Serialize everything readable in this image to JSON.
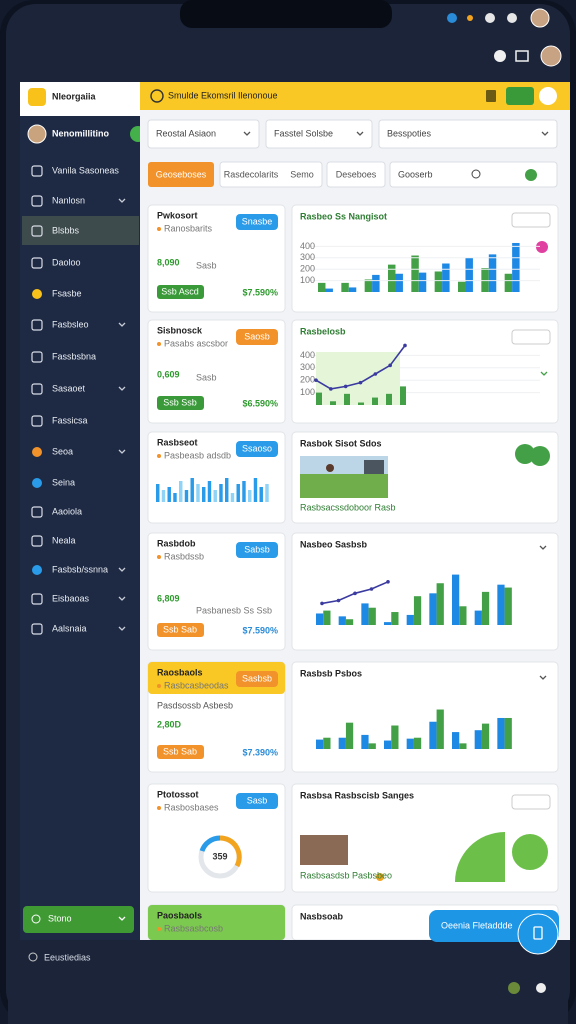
{
  "sidebar": {
    "brand": "Nleorgaiia",
    "profile": "Nenomillitino",
    "menu": [
      "Vanila Sasoneas",
      "Nanlosn",
      "Blsbbs",
      "Daoloo",
      "Fsasbe",
      "Fasbsleo",
      "Fassbsbna",
      "Sasaoet",
      "Fassicsa",
      "Seoa",
      "Seina",
      "Aaoiola",
      "Neala",
      "Fasbsb/ssnna",
      "Eisbaoas",
      "Aalsnaia"
    ],
    "button": "Stono"
  },
  "header": {
    "title": "Smulde Ekomsril Ilenonoue"
  },
  "filters": [
    "Reostal Asiaon",
    "Fasstel Solsbe",
    "Besspoties"
  ],
  "tabs": [
    "Geoseboses",
    "Rasdecolarits",
    "Semo",
    "Deseboes"
  ],
  "search": "Gooserb",
  "stat_cards": [
    {
      "title": "Pwkosort",
      "subtitle": "Ranosbarits",
      "badge": "Snasbe",
      "value": "8,090",
      "note": "Sasb",
      "button": "Ssb Ascd",
      "change": "$7.590%"
    },
    {
      "title": "Sisbnosck",
      "subtitle": "Pasabs ascsbor",
      "badge": "Saosb",
      "value": "0,609",
      "note": "Sasb",
      "button": "Ssb Ssb",
      "change": "$6.590%"
    },
    {
      "title": "Rasbseot",
      "subtitle": "Pasbeasb adsdb",
      "badge": "Ssaoso",
      "ylim": [
        0,
        100
      ],
      "values": [
        60,
        40,
        50,
        30,
        70,
        40,
        80,
        60,
        50,
        70,
        40,
        60,
        80,
        30,
        60,
        70,
        40,
        80,
        50,
        60
      ]
    },
    {
      "title": "Rasbdob",
      "subtitle": "Rasbdssb",
      "badge": "Sabsb",
      "value": "6,809",
      "note": "Pasbanesb Ss Ssb",
      "button": "Ssb Sab",
      "change": "$7.590%"
    },
    {
      "title": "Raosbaols",
      "subtitle": "Rasbcasbeodas",
      "badge": "Sasbsb",
      "note": "Pasdsossb Asbesb",
      "value": "2,80D",
      "button": "Ssb Sab",
      "change": "$7.390%"
    },
    {
      "title": "Ptotossot",
      "subtitle": "Rasbosbases",
      "badge": "Sasb",
      "value": "359"
    },
    {
      "title": "Paosbaols",
      "subtitle": "Rasbsasbcosb"
    }
  ],
  "chart_cards": [
    {
      "title": "Rasbeo Ss Nangisot",
      "ylim": [
        0,
        500
      ],
      "yticks": [
        100,
        200,
        300,
        400
      ],
      "series": [
        {
          "color": "#43a047",
          "values": [
            80,
            80,
            110,
            240,
            320,
            180,
            90,
            210,
            160
          ]
        },
        {
          "color": "#1e88e5",
          "values": [
            30,
            40,
            150,
            160,
            170,
            250,
            300,
            330,
            430
          ]
        }
      ]
    },
    {
      "title": "Rasbelosb",
      "ylim": [
        0,
        500
      ],
      "yticks": [
        100,
        200,
        300,
        400
      ],
      "bars": [
        100,
        30,
        90,
        20,
        60,
        90,
        150
      ],
      "line": [
        200,
        130,
        150,
        180,
        250,
        320,
        480
      ]
    },
    {
      "title": "Rasbok Sisot Sdos",
      "caption": "Rasbsacssdoboor Rasb"
    },
    {
      "title": "Nasbeo Sasbsb",
      "ylim": [
        0,
        500
      ],
      "series": [
        {
          "color": "#1e88e5",
          "values": [
            80,
            60,
            150,
            20,
            70,
            220,
            350,
            100,
            280
          ]
        },
        {
          "color": "#43a047",
          "values": [
            100,
            40,
            120,
            90,
            200,
            290,
            130,
            230,
            260
          ]
        }
      ],
      "line": [
        150,
        170,
        220,
        250,
        300
      ]
    },
    {
      "title": "Rasbsb Psbos",
      "ylim": [
        0,
        500
      ],
      "series": [
        {
          "color": "#1e88e5",
          "values": [
            100,
            120,
            150,
            90,
            110,
            290,
            180,
            200,
            330
          ]
        },
        {
          "color": "#43a047",
          "values": [
            120,
            280,
            60,
            250,
            120,
            420,
            60,
            270,
            330
          ]
        }
      ]
    },
    {
      "title": "Rasbsa Rasbscisb Sanges",
      "caption": "Rasbsasdsb Pasbsbeo"
    },
    {
      "title": "Nasbsoab"
    }
  ],
  "footer": {
    "label": "Eeustiedias"
  },
  "fab": {
    "label": "Oeenia Fletaddde"
  }
}
